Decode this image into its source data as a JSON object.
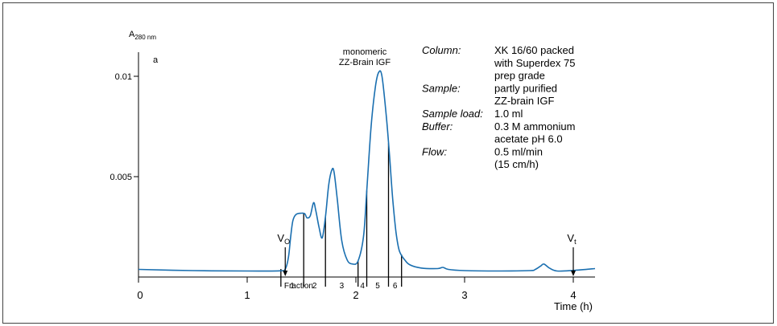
{
  "chart_data": {
    "type": "line",
    "panel_label": "a",
    "y_axis": {
      "label_main": "A",
      "label_sub": "280 nm",
      "ticks": [
        0.005,
        0.01
      ],
      "tick_labels": [
        "0.005",
        "0.01"
      ],
      "range": [
        0,
        0.0112
      ]
    },
    "x_axis": {
      "label": "Time (h)",
      "ticks": [
        0,
        1,
        2,
        3,
        4
      ],
      "tick_labels": [
        "0",
        "1",
        "2",
        "3",
        "4"
      ],
      "range": [
        0,
        4.2
      ]
    },
    "grid": false,
    "legend": "none",
    "series": [
      {
        "color": "#1a6fb0",
        "points": [
          [
            0.0,
            0.00038
          ],
          [
            0.5,
            0.00032
          ],
          [
            1.0,
            0.0003
          ],
          [
            1.3,
            0.00031
          ],
          [
            1.35,
            0.0004
          ],
          [
            1.38,
            0.001
          ],
          [
            1.4,
            0.002
          ],
          [
            1.42,
            0.0028
          ],
          [
            1.45,
            0.00312
          ],
          [
            1.5,
            0.00318
          ],
          [
            1.53,
            0.00315
          ],
          [
            1.55,
            0.00295
          ],
          [
            1.58,
            0.00305
          ],
          [
            1.61,
            0.0037
          ],
          [
            1.63,
            0.00335
          ],
          [
            1.66,
            0.0025
          ],
          [
            1.69,
            0.00195
          ],
          [
            1.72,
            0.003
          ],
          [
            1.75,
            0.0046
          ],
          [
            1.78,
            0.00535
          ],
          [
            1.8,
            0.0052
          ],
          [
            1.83,
            0.0038
          ],
          [
            1.87,
            0.0018
          ],
          [
            1.92,
            0.00085
          ],
          [
            1.97,
            0.00065
          ],
          [
            2.02,
            0.0008
          ],
          [
            2.07,
            0.002
          ],
          [
            2.1,
            0.0043
          ],
          [
            2.14,
            0.0075
          ],
          [
            2.18,
            0.0095
          ],
          [
            2.21,
            0.0102
          ],
          [
            2.24,
            0.01
          ],
          [
            2.28,
            0.008
          ],
          [
            2.31,
            0.006
          ],
          [
            2.34,
            0.0038
          ],
          [
            2.37,
            0.0022
          ],
          [
            2.4,
            0.0013
          ],
          [
            2.45,
            0.00085
          ],
          [
            2.5,
            0.0006
          ],
          [
            2.6,
            0.00045
          ],
          [
            2.75,
            0.00042
          ],
          [
            2.8,
            0.00048
          ],
          [
            2.85,
            0.00038
          ],
          [
            3.0,
            0.00032
          ],
          [
            3.3,
            0.0003
          ],
          [
            3.6,
            0.00032
          ],
          [
            3.65,
            0.00038
          ],
          [
            3.7,
            0.00055
          ],
          [
            3.73,
            0.00065
          ],
          [
            3.78,
            0.00045
          ],
          [
            3.85,
            0.0003
          ],
          [
            4.0,
            0.00033
          ],
          [
            4.2,
            0.00042
          ]
        ]
      }
    ],
    "fractions": {
      "label": "Fraction",
      "boundaries": [
        1.31,
        1.52,
        1.72,
        2.02,
        2.1,
        2.3,
        2.42
      ],
      "labels": [
        "1",
        "2",
        "3",
        "4",
        "5",
        "6"
      ]
    },
    "markers": [
      {
        "name": "V",
        "sub": "O",
        "x": 1.35
      },
      {
        "name": "V",
        "sub": "t",
        "x": 4.0
      }
    ],
    "peak_annotation": [
      "monomeric",
      "ZZ-Brain IGF"
    ],
    "conditions": [
      {
        "key": "Column:",
        "value": [
          "XK 16/60 packed",
          "with Superdex 75",
          "prep grade"
        ]
      },
      {
        "key": "Sample:",
        "value": [
          "partly purified",
          "ZZ-brain IGF"
        ]
      },
      {
        "key": "Sample load:",
        "value": [
          "1.0 ml"
        ]
      },
      {
        "key": "Buffer:",
        "value": [
          "0.3 M ammonium",
          "acetate pH 6.0"
        ]
      },
      {
        "key": "Flow:",
        "value": [
          "0.5 ml/min",
          "(15 cm/h)"
        ]
      }
    ]
  }
}
